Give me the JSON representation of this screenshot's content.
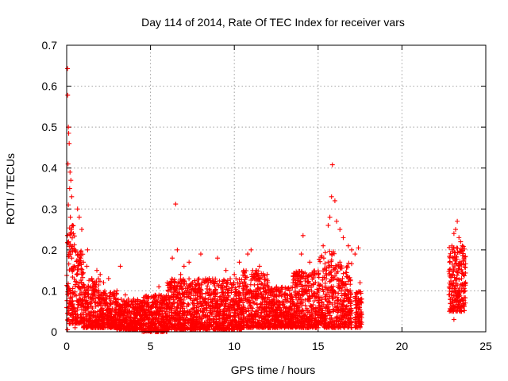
{
  "chart_data": {
    "type": "scatter",
    "title": "Day 114 of 2014, Rate Of TEC Index for receiver vars",
    "xlabel": "GPS time / hours",
    "ylabel": "ROTI / TECUs",
    "xlim": [
      0,
      25
    ],
    "ylim": [
      0,
      0.7
    ],
    "xticks": [
      "0",
      "5",
      "10",
      "15",
      "20",
      "25"
    ],
    "yticks": [
      "0",
      "0.1",
      "0.2",
      "0.3",
      "0.4",
      "0.5",
      "0.6",
      "0.7"
    ],
    "grid": true,
    "marker": "plus",
    "color": "#ff0000",
    "series": [
      {
        "points": [
          [
            0.05,
            0.643
          ],
          [
            0.06,
            0.578
          ],
          [
            0.1,
            0.5
          ],
          [
            0.12,
            0.485
          ],
          [
            0.15,
            0.46
          ],
          [
            0.08,
            0.41
          ],
          [
            0.2,
            0.39
          ],
          [
            0.25,
            0.37
          ],
          [
            0.18,
            0.35
          ],
          [
            0.3,
            0.33
          ],
          [
            0.1,
            0.31
          ],
          [
            0.22,
            0.28
          ],
          [
            0.35,
            0.26
          ],
          [
            0.4,
            0.24
          ],
          [
            0.12,
            0.22
          ],
          [
            0.5,
            0.2
          ],
          [
            0.65,
            0.3
          ],
          [
            0.75,
            0.28
          ],
          [
            0.9,
            0.25
          ],
          [
            0.3,
            0.18
          ],
          [
            0.45,
            0.16
          ],
          [
            0.6,
            0.14
          ],
          [
            0.8,
            0.19
          ],
          [
            1.0,
            0.17
          ],
          [
            1.2,
            0.16
          ],
          [
            1.25,
            0.2
          ],
          [
            1.5,
            0.13
          ],
          [
            1.8,
            0.15
          ],
          [
            2.0,
            0.14
          ],
          [
            2.2,
            0.12
          ],
          [
            2.5,
            0.13
          ],
          [
            3.0,
            0.1
          ],
          [
            3.2,
            0.16
          ],
          [
            3.5,
            0.09
          ],
          [
            4.0,
            0.08
          ],
          [
            4.5,
            0.07
          ],
          [
            5.0,
            0.06
          ],
          [
            5.5,
            0.11
          ],
          [
            6.0,
            0.12
          ],
          [
            6.3,
            0.18
          ],
          [
            6.5,
            0.312
          ],
          [
            6.6,
            0.2
          ],
          [
            6.8,
            0.14
          ],
          [
            7.0,
            0.16
          ],
          [
            7.3,
            0.17
          ],
          [
            7.5,
            0.12
          ],
          [
            8.0,
            0.19
          ],
          [
            8.5,
            0.13
          ],
          [
            9.0,
            0.18
          ],
          [
            9.5,
            0.15
          ],
          [
            10.0,
            0.14
          ],
          [
            10.3,
            0.17
          ],
          [
            10.8,
            0.19
          ],
          [
            11.0,
            0.2
          ],
          [
            11.5,
            0.16
          ],
          [
            12.0,
            0.12
          ],
          [
            12.5,
            0.1
          ],
          [
            13.0,
            0.09
          ],
          [
            13.5,
            0.12
          ],
          [
            14.0,
            0.19
          ],
          [
            14.1,
            0.235
          ],
          [
            14.5,
            0.17
          ],
          [
            15.0,
            0.14
          ],
          [
            15.3,
            0.21
          ],
          [
            15.6,
            0.26
          ],
          [
            15.7,
            0.28
          ],
          [
            15.8,
            0.33
          ],
          [
            15.85,
            0.408
          ],
          [
            16.0,
            0.32
          ],
          [
            16.1,
            0.27
          ],
          [
            16.3,
            0.25
          ],
          [
            16.5,
            0.23
          ],
          [
            16.8,
            0.21
          ],
          [
            17.0,
            0.2
          ],
          [
            17.2,
            0.19
          ],
          [
            17.4,
            0.205
          ],
          [
            17.5,
            0.12
          ],
          [
            17.6,
            0.08
          ],
          [
            23.0,
            0.2
          ],
          [
            23.1,
            0.24
          ],
          [
            23.2,
            0.25
          ],
          [
            23.3,
            0.27
          ],
          [
            23.4,
            0.23
          ],
          [
            23.5,
            0.22
          ],
          [
            23.6,
            0.21
          ],
          [
            23.7,
            0.18
          ],
          [
            23.0,
            0.05
          ],
          [
            23.1,
            0.03
          ],
          [
            0.05,
            0.005
          ],
          [
            0.5,
            0.01
          ],
          [
            1.0,
            0.01
          ],
          [
            2.0,
            0.01
          ],
          [
            3.0,
            0.005
          ],
          [
            4.0,
            0.005
          ],
          [
            5.0,
            0.0
          ],
          [
            6.0,
            0.005
          ],
          [
            7.0,
            0.005
          ],
          [
            8.0,
            0.01
          ],
          [
            9.0,
            0.01
          ],
          [
            10.0,
            0.01
          ],
          [
            11.0,
            0.01
          ],
          [
            12.0,
            0.01
          ],
          [
            13.0,
            0.01
          ],
          [
            14.0,
            0.01
          ],
          [
            15.0,
            0.01
          ],
          [
            16.0,
            0.01
          ],
          [
            17.0,
            0.01
          ],
          [
            17.5,
            0.01
          ]
        ]
      }
    ],
    "density_bands": [
      {
        "x": [
          0.0,
          0.5
        ],
        "low": 0.02,
        "high": 0.26
      },
      {
        "x": [
          0.5,
          1.0
        ],
        "low": 0.02,
        "high": 0.2
      },
      {
        "x": [
          1.0,
          2.0
        ],
        "low": 0.01,
        "high": 0.13
      },
      {
        "x": [
          2.0,
          3.0
        ],
        "low": 0.01,
        "high": 0.1
      },
      {
        "x": [
          3.0,
          4.5
        ],
        "low": 0.005,
        "high": 0.08
      },
      {
        "x": [
          4.5,
          6.0
        ],
        "low": 0.0,
        "high": 0.09
      },
      {
        "x": [
          6.0,
          7.5
        ],
        "low": 0.005,
        "high": 0.13
      },
      {
        "x": [
          7.5,
          9.0
        ],
        "low": 0.005,
        "high": 0.13
      },
      {
        "x": [
          9.0,
          10.5
        ],
        "low": 0.005,
        "high": 0.13
      },
      {
        "x": [
          10.5,
          12.0
        ],
        "low": 0.01,
        "high": 0.15
      },
      {
        "x": [
          12.0,
          13.5
        ],
        "low": 0.01,
        "high": 0.11
      },
      {
        "x": [
          13.5,
          15.0
        ],
        "low": 0.01,
        "high": 0.15
      },
      {
        "x": [
          15.0,
          16.0
        ],
        "low": 0.01,
        "high": 0.2
      },
      {
        "x": [
          16.0,
          17.0
        ],
        "low": 0.01,
        "high": 0.17
      },
      {
        "x": [
          17.2,
          17.6
        ],
        "low": 0.01,
        "high": 0.1
      },
      {
        "x": [
          22.8,
          23.8
        ],
        "low": 0.05,
        "high": 0.21
      }
    ]
  }
}
